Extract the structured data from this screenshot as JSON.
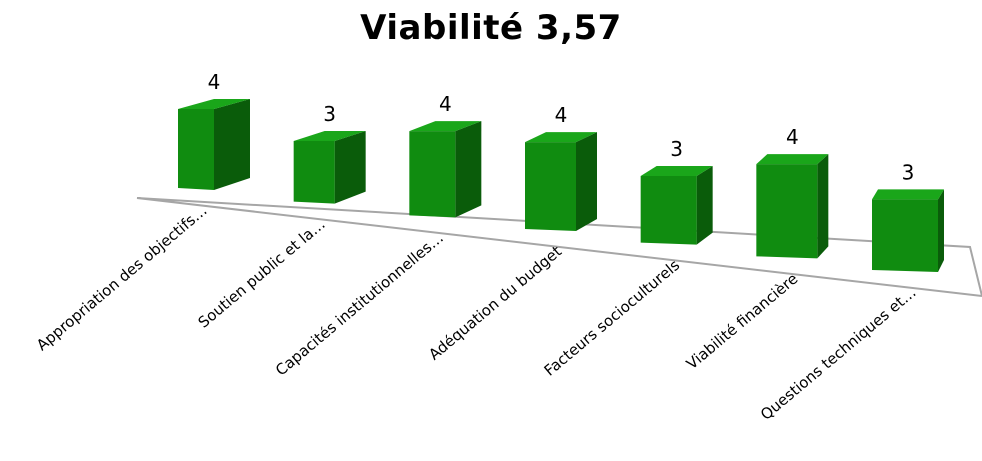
{
  "chart_data": {
    "type": "bar",
    "title": "Viabilité 3,57",
    "categories": [
      "Appropriation des objectifs…",
      "Soutien public et la…",
      "Capacités institutionnelles…",
      "Adéquation du budget",
      "Facteurs socioculturels",
      "Viabilité financière",
      "Questions techniques et…"
    ],
    "values": [
      4,
      3,
      4,
      4,
      3,
      4,
      3
    ],
    "data_labels": [
      "4",
      "3",
      "4",
      "4",
      "3",
      "4",
      "3"
    ],
    "ylim": [
      0,
      4
    ],
    "grid": false,
    "legend": "none",
    "style": "3d-perspective",
    "colors": {
      "front": "#108c10",
      "side": "#0a5c0a",
      "top": "#1aa61a",
      "floor_line": "#a6a6a6"
    }
  }
}
